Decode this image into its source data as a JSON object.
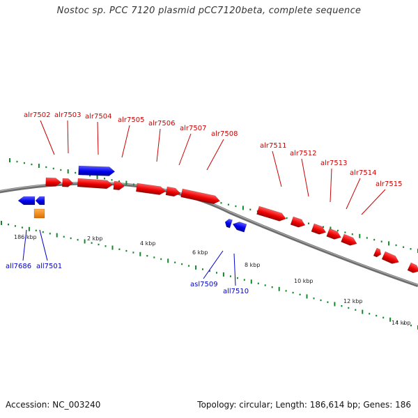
{
  "title": "Nostoc sp. PCC 7120 plasmid pCC7120beta, complete sequence",
  "footer": {
    "accession": "Accession: NC_003240",
    "summary": "Topology: circular; Length: 186,614 bp; Genes: 186"
  },
  "colors": {
    "forward": "#ee0000",
    "reverse": "#0000ee",
    "other": "#ff8800",
    "tick": "#11882a",
    "backbone": "#777777"
  },
  "tick_labels": [
    "186 kbp",
    "2 kbp",
    "4 kbp",
    "6 kbp",
    "8 kbp",
    "10 kbp",
    "12 kbp",
    "14 kbp"
  ],
  "forward_labels": [
    "alr7502",
    "alr7503",
    "alr7504",
    "alr7505",
    "alr7506",
    "alr7507",
    "alr7508",
    "alr7511",
    "alr7512",
    "alr7513",
    "alr7514",
    "alr7515"
  ],
  "reverse_labels": [
    "all7686",
    "all7501",
    "asl7509",
    "all7510"
  ]
}
